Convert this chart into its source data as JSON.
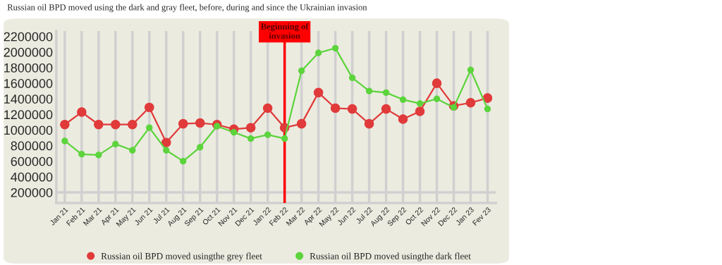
{
  "chart_data": {
    "type": "line",
    "title": "Russian oil BPD moved using the dark and gray fleet, before, during and since the Ukrainian invasion",
    "categories": [
      "Jan 21",
      "Feb 21",
      "Mar 21",
      "Apr 21",
      "May 21",
      "Jun 21",
      "Jul 21",
      "Aug 21",
      "Sep 21",
      "Oct 21",
      "Nov 21",
      "Dec 21",
      "Jan 22",
      "Feb 22",
      "Mar 22",
      "Apr 22",
      "May 22",
      "Jun 22",
      "Jul 22",
      "Aug 22",
      "Sep 22",
      "Oct 22",
      "Nov 22",
      "Dec 22",
      "Jan 23",
      "Fev 23"
    ],
    "series": [
      {
        "name": "Russian oil BPD moved usingthe grey fleet",
        "color": "#e03a3a",
        "values": [
          1070000,
          1230000,
          1070000,
          1070000,
          1070000,
          1290000,
          840000,
          1080000,
          1090000,
          1070000,
          1010000,
          1030000,
          1280000,
          1030000,
          1080000,
          1480000,
          1280000,
          1270000,
          1080000,
          1270000,
          1140000,
          1240000,
          1600000,
          1310000,
          1350000,
          1410000
        ]
      },
      {
        "name": "Russian oil BPD moved usingthe dark fleet",
        "color": "#5cd43c",
        "values": [
          860000,
          690000,
          680000,
          820000,
          740000,
          1030000,
          740000,
          600000,
          780000,
          1050000,
          970000,
          890000,
          940000,
          890000,
          1760000,
          1990000,
          2050000,
          1670000,
          1500000,
          1480000,
          1390000,
          1340000,
          1400000,
          1290000,
          1770000,
          1270000
        ]
      }
    ],
    "ylim": [
      64000,
      2270000
    ],
    "yticks": [
      200000,
      400000,
      600000,
      800000,
      1000000,
      1200000,
      1400000,
      1600000,
      1800000,
      2000000,
      2200000
    ],
    "ref_lines": [
      {
        "axis": "x",
        "value": "Feb 22",
        "label": "Beginning of\ninvasion",
        "color": "#ff0000"
      },
      {
        "axis": "y",
        "value": 200000,
        "color": "#d0d0d0"
      }
    ],
    "grid": "x",
    "legend": "bottom",
    "marker": "circle",
    "line_style": "solid"
  }
}
